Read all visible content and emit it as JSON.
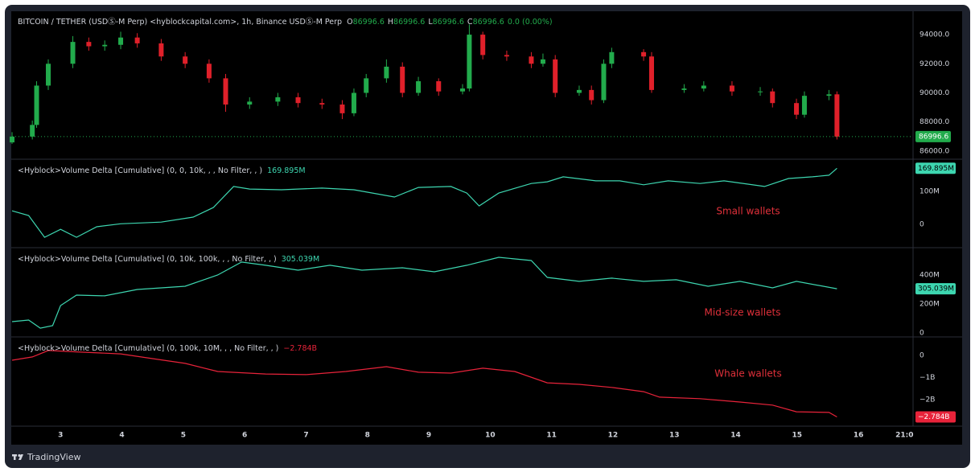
{
  "chart_data": [
    {
      "type": "candlestick",
      "title": "BITCOIN / TETHER (USDⓈ-M Perp) <hyblockcapital.com>, 1h, Binance USDⓈ-M Perp",
      "readout": [
        {
          "key": "O",
          "value": 86996.6
        },
        {
          "key": "H",
          "value": 86996.6
        },
        {
          "key": "L",
          "value": 86996.6
        },
        {
          "key": "C",
          "value": 86996.6
        }
      ],
      "change": "0.0 (0.00%)",
      "up_color": "#22ab4c",
      "down_color": "#e0202a",
      "x": [
        2.21,
        2.54,
        2.61,
        2.8,
        3.2,
        3.46,
        3.72,
        3.98,
        4.25,
        4.64,
        5.03,
        5.42,
        5.69,
        6.08,
        6.54,
        6.87,
        7.26,
        7.59,
        7.78,
        7.98,
        8.31,
        8.57,
        8.83,
        9.16,
        9.55,
        9.66,
        9.88,
        10.27,
        10.67,
        10.86,
        11.06,
        11.45,
        11.65,
        11.85,
        11.98,
        12.5,
        12.63,
        13.16,
        13.48,
        13.94,
        14.4,
        14.6,
        14.99,
        15.12,
        15.52,
        15.65
      ],
      "open": [
        86600,
        87000,
        87800,
        90500,
        92000,
        93500,
        93200,
        93300,
        93800,
        93400,
        92500,
        92000,
        91000,
        89200,
        89400,
        89700,
        89300,
        89200,
        88600,
        90000,
        91000,
        91800,
        90000,
        90800,
        90100,
        90300,
        94000,
        92600,
        92500,
        92000,
        92300,
        90000,
        90200,
        89500,
        92000,
        92800,
        92500,
        90200,
        90300,
        90500,
        90100,
        90100,
        89300,
        88500,
        89800,
        89900
      ],
      "high": [
        87300,
        88100,
        90800,
        92300,
        93900,
        93800,
        93600,
        94200,
        94100,
        93700,
        92800,
        92300,
        91300,
        89700,
        90000,
        90000,
        89600,
        89500,
        90300,
        91300,
        92300,
        92100,
        91100,
        91000,
        90600,
        94700,
        94200,
        92900,
        92800,
        92700,
        92600,
        90500,
        90500,
        92300,
        93100,
        93000,
        92800,
        90600,
        90800,
        90800,
        90400,
        90300,
        89600,
        90100,
        90200,
        90100
      ],
      "low": [
        86500,
        86800,
        87600,
        90200,
        91700,
        92900,
        92900,
        93000,
        93100,
        92200,
        91700,
        90700,
        88700,
        88900,
        89100,
        89000,
        88900,
        88200,
        88400,
        89700,
        90700,
        89700,
        89800,
        89800,
        89900,
        90100,
        92300,
        92200,
        91700,
        91800,
        89700,
        89800,
        89200,
        89300,
        91700,
        92200,
        90000,
        90000,
        90100,
        89800,
        89800,
        89000,
        88200,
        88300,
        89500,
        86800
      ],
      "close": [
        87000,
        87800,
        90500,
        92000,
        93500,
        93200,
        93300,
        93800,
        93400,
        92500,
        92000,
        91000,
        89200,
        89400,
        89700,
        89300,
        89200,
        88600,
        90000,
        91000,
        91800,
        90000,
        90800,
        90100,
        90300,
        94000,
        92600,
        92500,
        92000,
        92300,
        90000,
        90200,
        89500,
        92000,
        92800,
        92500,
        90200,
        90300,
        90500,
        90100,
        90100,
        89300,
        88500,
        89800,
        89900,
        86996.6
      ],
      "ylim": [
        85500,
        95550
      ],
      "yticks": [
        {
          "value": 86000,
          "label": "86000.0"
        },
        {
          "value": 88000,
          "label": "88000.0"
        },
        {
          "value": 90000,
          "label": "90000.0"
        },
        {
          "value": 92000,
          "label": "92000.0"
        },
        {
          "value": 94000,
          "label": "94000.0"
        }
      ],
      "xlim": [
        2.21,
        16.89
      ],
      "xticks": [
        3,
        4,
        5,
        6,
        7,
        8,
        9,
        10,
        11,
        12,
        13,
        14,
        15,
        16,
        {
          "value": 16.75,
          "label": "21:0"
        }
      ]
    },
    {
      "type": "line",
      "annotation": "Small wallets",
      "series": [
        {
          "name": "<Hyblock>Volume Delta [Cumulative] (0, 0, 10k, , , No Filter, , )",
          "color": "#3dd6b0",
          "last_label": "169.895M",
          "x": [
            2.21,
            2.48,
            2.74,
            3.0,
            3.26,
            3.59,
            3.98,
            4.64,
            5.16,
            5.49,
            5.82,
            6.08,
            6.6,
            7.26,
            7.78,
            8.44,
            8.83,
            9.36,
            9.62,
            9.82,
            10.14,
            10.67,
            10.93,
            11.19,
            11.72,
            12.11,
            12.5,
            12.9,
            13.42,
            13.81,
            14.47,
            14.86,
            15.25,
            15.52,
            15.65
          ],
          "values": [
            41,
            27,
            -39,
            -15,
            -39,
            -7,
            2,
            7,
            22,
            51,
            115,
            107,
            105,
            110,
            105,
            83,
            112,
            115,
            95,
            56,
            95,
            124,
            129,
            144,
            132,
            132,
            120,
            132,
            124,
            132,
            115,
            139,
            144,
            149,
            169.895
          ]
        }
      ],
      "ylim": [
        -68,
        195
      ],
      "yticks": [
        0,
        {
          "value": 100,
          "label": "100M"
        }
      ]
    },
    {
      "type": "line",
      "annotation": "Mid-size wallets",
      "series": [
        {
          "name": "<Hyblock>Volume Delta [Cumulative] (0, 10k, 100k, , , No Filter, , )",
          "color": "#3dd6b0",
          "last_label": "305.039M",
          "x": [
            2.21,
            2.48,
            2.67,
            2.87,
            3.0,
            3.26,
            3.72,
            4.25,
            5.03,
            5.56,
            5.95,
            6.34,
            6.87,
            7.39,
            7.91,
            8.57,
            9.09,
            9.62,
            10.14,
            10.67,
            10.93,
            11.45,
            11.98,
            12.5,
            13.03,
            13.55,
            14.07,
            14.6,
            14.99,
            15.65
          ],
          "values": [
            78,
            89,
            33,
            50,
            189,
            261,
            256,
            300,
            322,
            400,
            489,
            467,
            433,
            467,
            433,
            450,
            422,
            467,
            522,
            500,
            383,
            356,
            378,
            356,
            367,
            322,
            356,
            311,
            356,
            305.039
          ]
        }
      ],
      "ylim": [
        -22,
        583
      ],
      "yticks": [
        0,
        {
          "value": 200,
          "label": "200M"
        },
        {
          "value": 400,
          "label": "400M"
        }
      ]
    },
    {
      "type": "line",
      "annotation": "Whale wallets",
      "series": [
        {
          "name": "<Hyblock>Volume Delta [Cumulative] (0, 100k, 10M, , , No Filter, , )",
          "color": "#e8233a",
          "last_label": "−2.784B",
          "x": [
            2.21,
            2.54,
            2.8,
            3.33,
            3.98,
            4.51,
            5.03,
            5.56,
            6.34,
            7.0,
            7.65,
            8.31,
            8.83,
            9.36,
            9.88,
            10.4,
            10.93,
            11.45,
            11.98,
            12.5,
            12.76,
            13.42,
            14.07,
            14.6,
            14.99,
            15.52,
            15.65
          ],
          "values": [
            -0.22,
            -0.07,
            0.22,
            0.15,
            0.07,
            -0.15,
            -0.36,
            -0.73,
            -0.84,
            -0.87,
            -0.73,
            -0.51,
            -0.76,
            -0.8,
            -0.58,
            -0.73,
            -1.24,
            -1.31,
            -1.45,
            -1.64,
            -1.89,
            -1.96,
            -2.11,
            -2.25,
            -2.55,
            -2.58,
            -2.784
          ]
        }
      ],
      "ylim": [
        -3.13,
        0.8
      ],
      "yticks": [
        {
          "value": -2,
          "label": "−2B"
        },
        {
          "value": -1,
          "label": "−1B"
        },
        0
      ]
    }
  ],
  "footer": {
    "brand": "TradingView"
  }
}
